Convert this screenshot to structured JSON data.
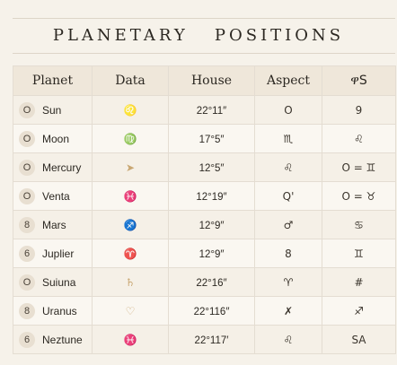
{
  "title": "PLANETARY   POSITIONS",
  "headers": [
    "Planet",
    "Data",
    "House",
    "Aspect",
    "ዋS"
  ],
  "rows": [
    {
      "num": "O",
      "name": "Sun",
      "sign": "♌",
      "house": "22°11″",
      "aspect": "O",
      "extra": "9"
    },
    {
      "num": "O",
      "name": "Moon",
      "sign": "♍",
      "house": "17°5″",
      "aspect": "♏",
      "extra": "♌"
    },
    {
      "num": "O",
      "name": "Mercury",
      "sign": "➤",
      "house": "12°5″",
      "aspect": "♌",
      "extra": "O = ♊"
    },
    {
      "num": "O",
      "name": "Venta",
      "sign": "♓",
      "house": "12°19″",
      "aspect": "Q'",
      "extra": "O = ♉"
    },
    {
      "num": "8",
      "name": "Mars",
      "sign": "♐",
      "house": "12°9″",
      "aspect": "♂",
      "extra": "♋"
    },
    {
      "num": "6",
      "name": "Juplier",
      "sign": "♈",
      "house": "12°9″",
      "aspect": "8",
      "extra": "♊"
    },
    {
      "num": "O",
      "name": "Suiuna",
      "sign": "♄",
      "house": "22°16″",
      "aspect": "♈",
      "extra": "#"
    },
    {
      "num": "8",
      "name": "Uranus",
      "sign": "♡",
      "house": "22°116″",
      "aspect": "✗",
      "extra": "♐"
    },
    {
      "num": "6",
      "name": "Neztune",
      "sign": "♓",
      "house": "22°117′",
      "aspect": "♌",
      "extra": "SA"
    }
  ]
}
